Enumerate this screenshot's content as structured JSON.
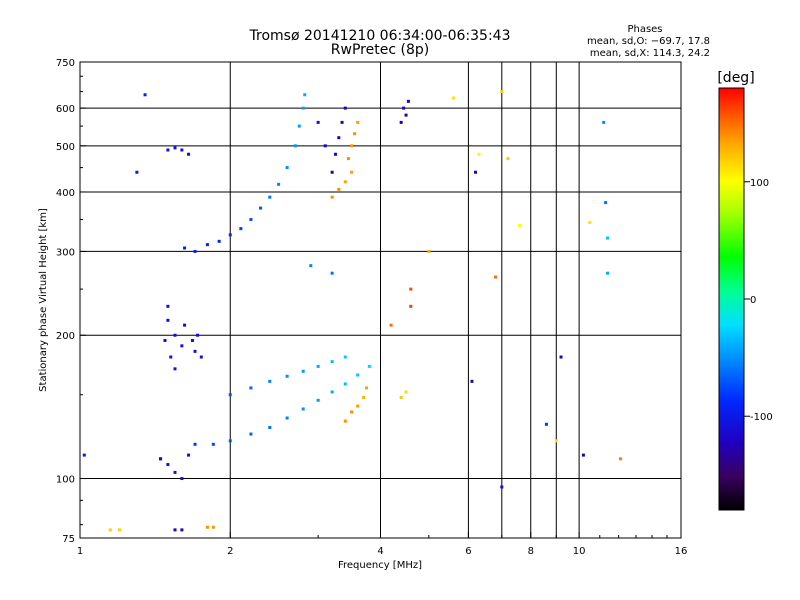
{
  "chart_data": {
    "type": "scatter",
    "title": "Tromsø 20141210 06:34:00-06:35:43",
    "subtitle": "RwPretec (8p)",
    "legend_title": "Phases",
    "legend_lines": [
      "mean, sd,O: −69.7, 17.8",
      "mean, sd,X: 114.3, 24.2"
    ],
    "xlabel": "Frequency [MHz]",
    "ylabel": "Stationary phase Virtual Height [km]",
    "x_scale": "log",
    "y_scale": "log",
    "xlim": [
      1,
      16
    ],
    "ylim": [
      75,
      750
    ],
    "x_ticks": [
      1,
      2,
      4,
      6,
      8,
      10,
      16
    ],
    "x_tick_labels": [
      "1",
      "2",
      "4",
      "6",
      "8",
      "10",
      "16"
    ],
    "x_grid": [
      2,
      4,
      6,
      7,
      8,
      9,
      10
    ],
    "y_ticks": [
      75,
      100,
      200,
      300,
      400,
      500,
      600,
      750
    ],
    "y_tick_labels": [
      "75",
      "100",
      "200",
      "300",
      "400",
      "500",
      "600",
      "750"
    ],
    "y_grid": [
      100,
      200,
      300,
      400,
      500,
      600
    ],
    "grid": true,
    "colorbar": {
      "label": "[deg]",
      "range": [
        -180,
        180
      ],
      "ticks": [
        100,
        0,
        -100
      ],
      "tick_labels": [
        "100",
        "0",
        "-100"
      ]
    },
    "series": [
      {
        "points": [
          [
            1.62,
            305,
            -95
          ],
          [
            1.7,
            300,
            -95
          ],
          [
            1.8,
            310,
            -92
          ],
          [
            1.9,
            315,
            -90
          ],
          [
            2.0,
            325,
            -85
          ],
          [
            2.1,
            335,
            -80
          ],
          [
            2.2,
            350,
            -75
          ],
          [
            2.3,
            370,
            -70
          ],
          [
            2.4,
            390,
            -60
          ],
          [
            2.5,
            415,
            -55
          ],
          [
            2.6,
            450,
            -50
          ],
          [
            2.7,
            500,
            -48
          ],
          [
            2.75,
            550,
            -45
          ],
          [
            2.8,
            600,
            -42
          ],
          [
            2.82,
            640,
            -40
          ]
        ]
      },
      {
        "points": [
          [
            1.7,
            118,
            -80
          ],
          [
            1.85,
            118,
            -75
          ],
          [
            2.0,
            120,
            -70
          ],
          [
            2.2,
            124,
            -65
          ],
          [
            2.4,
            128,
            -60
          ],
          [
            2.6,
            134,
            -55
          ],
          [
            2.8,
            140,
            -50
          ],
          [
            3.0,
            146,
            -45
          ],
          [
            3.2,
            152,
            -40
          ],
          [
            3.4,
            158,
            -35
          ],
          [
            3.6,
            165,
            -30
          ],
          [
            3.8,
            172,
            -25
          ]
        ]
      },
      {
        "points": [
          [
            2.0,
            150,
            -70
          ],
          [
            2.2,
            155,
            -65
          ],
          [
            2.4,
            160,
            -55
          ],
          [
            2.6,
            164,
            -50
          ],
          [
            2.8,
            168,
            -45
          ],
          [
            3.0,
            172,
            -40
          ],
          [
            3.2,
            176,
            -35
          ],
          [
            3.4,
            180,
            -30
          ]
        ]
      },
      {
        "points": [
          [
            1.48,
            195,
            -110
          ],
          [
            1.5,
            215,
            -110
          ],
          [
            1.52,
            180,
            -105
          ],
          [
            1.55,
            200,
            -110
          ],
          [
            1.6,
            190,
            -108
          ],
          [
            1.62,
            210,
            -112
          ],
          [
            1.68,
            195,
            -108
          ],
          [
            1.7,
            185,
            -105
          ],
          [
            1.72,
            200,
            -110
          ],
          [
            1.75,
            180,
            -108
          ],
          [
            1.5,
            230,
            -110
          ],
          [
            1.55,
            170,
            -105
          ]
        ]
      },
      {
        "points": [
          [
            1.5,
            107,
            -110
          ],
          [
            1.55,
            103,
            -108
          ],
          [
            1.6,
            100,
            -110
          ],
          [
            1.45,
            110,
            -105
          ],
          [
            1.65,
            112,
            -108
          ]
        ]
      },
      {
        "points": [
          [
            3.2,
            390,
            140
          ],
          [
            3.3,
            405,
            140
          ],
          [
            3.4,
            420,
            135
          ],
          [
            3.5,
            440,
            135
          ],
          [
            3.45,
            470,
            140
          ],
          [
            3.5,
            500,
            138
          ],
          [
            3.55,
            530,
            140
          ],
          [
            3.6,
            560,
            135
          ]
        ]
      },
      {
        "points": [
          [
            3.2,
            440,
            -125
          ],
          [
            3.25,
            480,
            -120
          ],
          [
            3.3,
            520,
            -125
          ],
          [
            3.35,
            560,
            -118
          ],
          [
            3.4,
            600,
            -122
          ],
          [
            3.1,
            500,
            -115
          ],
          [
            3.0,
            560,
            -110
          ]
        ]
      },
      {
        "points": [
          [
            4.4,
            560,
            -130
          ],
          [
            4.5,
            580,
            -135
          ],
          [
            4.45,
            600,
            -130
          ],
          [
            4.55,
            620,
            -128
          ]
        ]
      },
      {
        "points": [
          [
            3.4,
            132,
            140
          ],
          [
            3.5,
            138,
            140
          ],
          [
            3.6,
            142,
            135
          ],
          [
            3.7,
            148,
            130
          ],
          [
            3.75,
            155,
            135
          ],
          [
            4.4,
            148,
            120
          ],
          [
            4.5,
            152,
            115
          ]
        ]
      },
      {
        "points": [
          [
            1.5,
            490,
            -110
          ],
          [
            1.55,
            495,
            -105
          ],
          [
            1.6,
            490,
            -108
          ],
          [
            1.65,
            480,
            -110
          ]
        ]
      },
      {
        "points": [
          [
            1.15,
            78,
            120
          ],
          [
            1.2,
            78,
            118
          ],
          [
            1.55,
            78,
            -120
          ],
          [
            1.6,
            78,
            -118
          ],
          [
            1.8,
            79,
            140
          ],
          [
            1.85,
            79,
            138
          ]
        ]
      },
      {
        "points": [
          [
            1.02,
            112,
            -100
          ],
          [
            1.35,
            640,
            -95
          ],
          [
            1.45,
            110,
            -110
          ],
          [
            1.3,
            440,
            -100
          ],
          [
            5.6,
            630,
            110
          ],
          [
            7.0,
            650,
            118
          ],
          [
            6.3,
            480,
            105
          ],
          [
            7.2,
            470,
            120
          ],
          [
            6.8,
            265,
            150
          ],
          [
            11.3,
            380,
            -60
          ],
          [
            11.4,
            270,
            -40
          ],
          [
            12.1,
            110,
            145
          ],
          [
            9.2,
            180,
            -120
          ],
          [
            7.6,
            340,
            100
          ],
          [
            10.2,
            112,
            -130
          ],
          [
            11.4,
            320,
            -30
          ],
          [
            6.2,
            440,
            -120
          ],
          [
            5.0,
            300,
            130
          ],
          [
            4.6,
            250,
            160
          ],
          [
            3.2,
            270,
            -60
          ],
          [
            2.9,
            280,
            -55
          ],
          [
            4.2,
            210,
            150
          ],
          [
            4.6,
            230,
            165
          ],
          [
            8.6,
            130,
            -80
          ],
          [
            9.0,
            120,
            110
          ],
          [
            11.2,
            560,
            -50
          ],
          [
            10.5,
            345,
            110
          ],
          [
            7.0,
            96,
            -110
          ],
          [
            6.1,
            160,
            -130
          ]
        ]
      }
    ]
  }
}
